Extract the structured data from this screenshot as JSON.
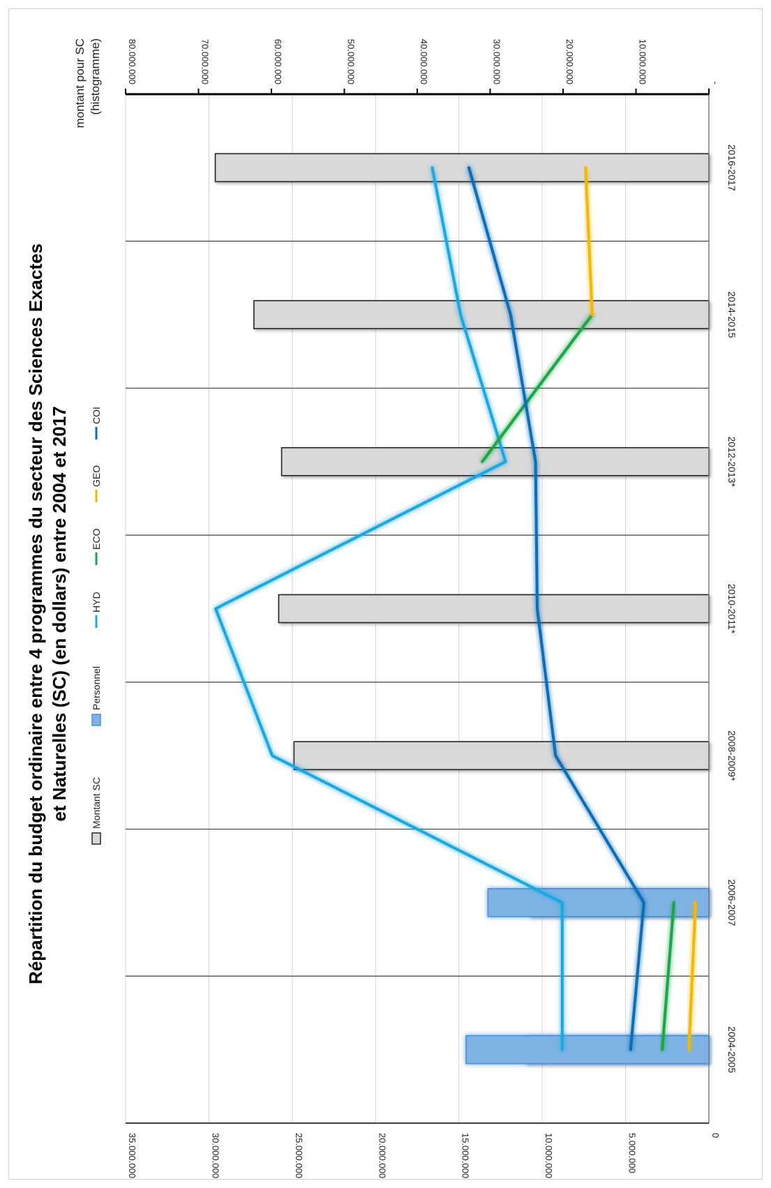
{
  "chart_data": {
    "type": "bar",
    "title_lines": [
      "Répartition du budget ordinaire entre 4 programmes du secteur des Sciences Exactes",
      "et Naturelles (SC) (en dollars) entre 2004 et 2017"
    ],
    "right_axis_label_lines": [
      "montant pour SC",
      "(histogramme)"
    ],
    "categories": [
      "2004-2005",
      "2006-2007",
      "2008-2009*",
      "2010-2011*",
      "2012-2013*",
      "2014-2015",
      "2016-2017"
    ],
    "left_axis": {
      "range": [
        0,
        35000000
      ],
      "ticks": [
        0,
        5000000,
        10000000,
        15000000,
        20000000,
        25000000,
        30000000,
        35000000
      ],
      "tick_labels": [
        "0",
        "5.000.000",
        "10.000.000",
        "15.000.000",
        "20.000.000",
        "25.000.000",
        "30.000.000",
        "35.000.000"
      ]
    },
    "right_axis": {
      "range": [
        0,
        80000000
      ],
      "ticks": [
        0,
        10000000,
        20000000,
        30000000,
        40000000,
        50000000,
        60000000,
        70000000,
        80000000
      ],
      "tick_labels": [
        "-",
        "10.000.000",
        "20.000.000",
        "30.000.000",
        "40.000.000",
        "50.000.000",
        "60.000.000",
        "70.000.000",
        "80.000.000"
      ]
    },
    "bars": [
      {
        "name": "Montant SC",
        "axis": "right",
        "color": "#d9d9d9",
        "stroke": "#262626",
        "values": [
          25200000,
          24500000,
          56900000,
          59000000,
          58600000,
          62400000,
          67700000
        ]
      },
      {
        "name": "Personnel",
        "axis": "right",
        "color": "#7eb2e4",
        "stroke": "#4a90d9",
        "values": [
          33300000,
          30300000,
          null,
          null,
          null,
          null,
          null
        ]
      }
    ],
    "series": [
      {
        "name": "HYD",
        "axis": "left",
        "color": "#1ea7e1",
        "values": [
          8800000,
          8800000,
          26200000,
          29600000,
          12200000,
          14900000,
          16600000
        ]
      },
      {
        "name": "ECO",
        "axis": "left",
        "color": "#1aa64a",
        "values": [
          2800000,
          2100000,
          null,
          null,
          13600000,
          7000000,
          null
        ]
      },
      {
        "name": "GEO",
        "axis": "left",
        "color": "#f5b800",
        "values": [
          1200000,
          800000,
          null,
          null,
          null,
          7000000,
          7400000
        ]
      },
      {
        "name": "COI",
        "axis": "left",
        "color": "#0b6db6",
        "values": [
          4700000,
          3900000,
          9200000,
          10300000,
          10400000,
          11900000,
          14400000
        ]
      }
    ],
    "legend": {
      "placement": "top",
      "items": [
        {
          "name": "Montant SC",
          "kind": "bar",
          "color": "#d9d9d9",
          "stroke": "#262626"
        },
        {
          "name": "Personnel",
          "kind": "bar",
          "color": "#7eb2e4",
          "stroke": "#4a90d9"
        },
        {
          "name": "HYD",
          "kind": "line",
          "color": "#1ea7e1"
        },
        {
          "name": "ECO",
          "kind": "line",
          "color": "#1aa64a"
        },
        {
          "name": "GEO",
          "kind": "line",
          "color": "#f5b800"
        },
        {
          "name": "COI",
          "kind": "line",
          "color": "#0b6db6"
        }
      ]
    },
    "grid": true,
    "orientation": "rotated-90-clockwise"
  }
}
